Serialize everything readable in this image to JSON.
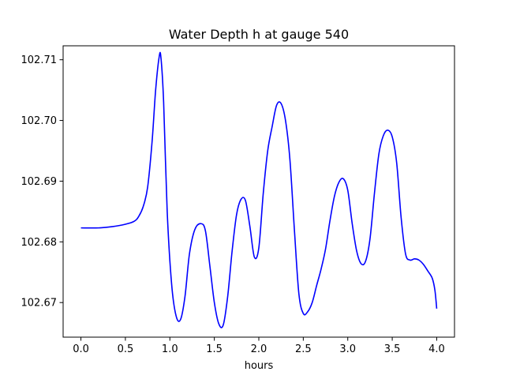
{
  "chart_data": {
    "type": "line",
    "title": "Water Depth h at gauge 540",
    "xlabel": "hours",
    "ylabel": "",
    "xlim": [
      -0.2,
      4.2
    ],
    "ylim": [
      102.6643,
      102.7123
    ],
    "grid": false,
    "legend": "none",
    "x_ticks": [
      0.0,
      0.5,
      1.0,
      1.5,
      2.0,
      2.5,
      3.0,
      3.5,
      4.0
    ],
    "x_tick_labels": [
      "0.0",
      "0.5",
      "1.0",
      "1.5",
      "2.0",
      "2.5",
      "3.0",
      "3.5",
      "4.0"
    ],
    "y_ticks": [
      102.67,
      102.68,
      102.69,
      102.7,
      102.71
    ],
    "y_tick_labels": [
      "102.67",
      "102.68",
      "102.69",
      "102.70",
      "102.71"
    ],
    "series": [
      {
        "color": "#0000ff",
        "points": [
          [
            0.0,
            102.6823
          ],
          [
            0.2,
            102.6823
          ],
          [
            0.35,
            102.6825
          ],
          [
            0.5,
            102.6829
          ],
          [
            0.6,
            102.6834
          ],
          [
            0.65,
            102.6842
          ],
          [
            0.7,
            102.6858
          ],
          [
            0.75,
            102.689
          ],
          [
            0.8,
            102.6965
          ],
          [
            0.84,
            102.705
          ],
          [
            0.88,
            102.7105
          ],
          [
            0.9,
            102.7103
          ],
          [
            0.93,
            102.703
          ],
          [
            0.97,
            102.685
          ],
          [
            1.02,
            102.673
          ],
          [
            1.07,
            102.6678
          ],
          [
            1.12,
            102.6672
          ],
          [
            1.17,
            102.671
          ],
          [
            1.22,
            102.678
          ],
          [
            1.28,
            102.682
          ],
          [
            1.35,
            102.683
          ],
          [
            1.4,
            102.6818
          ],
          [
            1.45,
            102.676
          ],
          [
            1.5,
            102.67
          ],
          [
            1.55,
            102.6665
          ],
          [
            1.6,
            102.6663
          ],
          [
            1.65,
            102.671
          ],
          [
            1.7,
            102.6785
          ],
          [
            1.75,
            102.6845
          ],
          [
            1.8,
            102.687
          ],
          [
            1.85,
            102.6868
          ],
          [
            1.9,
            102.6825
          ],
          [
            1.95,
            102.6775
          ],
          [
            2.0,
            102.679
          ],
          [
            2.05,
            102.688
          ],
          [
            2.1,
            102.695
          ],
          [
            2.15,
            102.699
          ],
          [
            2.2,
            102.7025
          ],
          [
            2.25,
            102.7028
          ],
          [
            2.3,
            102.7
          ],
          [
            2.35,
            102.6935
          ],
          [
            2.4,
            102.682
          ],
          [
            2.45,
            102.6715
          ],
          [
            2.5,
            102.6682
          ],
          [
            2.55,
            102.6685
          ],
          [
            2.6,
            102.67
          ],
          [
            2.65,
            102.6728
          ],
          [
            2.7,
            102.6755
          ],
          [
            2.75,
            102.6788
          ],
          [
            2.8,
            102.6835
          ],
          [
            2.85,
            102.6875
          ],
          [
            2.9,
            102.6898
          ],
          [
            2.95,
            102.6904
          ],
          [
            3.0,
            102.6885
          ],
          [
            3.05,
            102.683
          ],
          [
            3.1,
            102.6785
          ],
          [
            3.15,
            102.6764
          ],
          [
            3.2,
            102.6768
          ],
          [
            3.25,
            102.6805
          ],
          [
            3.3,
            102.688
          ],
          [
            3.35,
            102.6945
          ],
          [
            3.4,
            102.6975
          ],
          [
            3.45,
            102.6984
          ],
          [
            3.5,
            102.6973
          ],
          [
            3.55,
            102.693
          ],
          [
            3.6,
            102.684
          ],
          [
            3.65,
            102.678
          ],
          [
            3.7,
            102.677
          ],
          [
            3.75,
            102.6772
          ],
          [
            3.8,
            102.677
          ],
          [
            3.85,
            102.6763
          ],
          [
            3.9,
            102.6752
          ],
          [
            3.95,
            102.674
          ],
          [
            3.98,
            102.672
          ],
          [
            4.0,
            102.669
          ]
        ]
      }
    ]
  }
}
